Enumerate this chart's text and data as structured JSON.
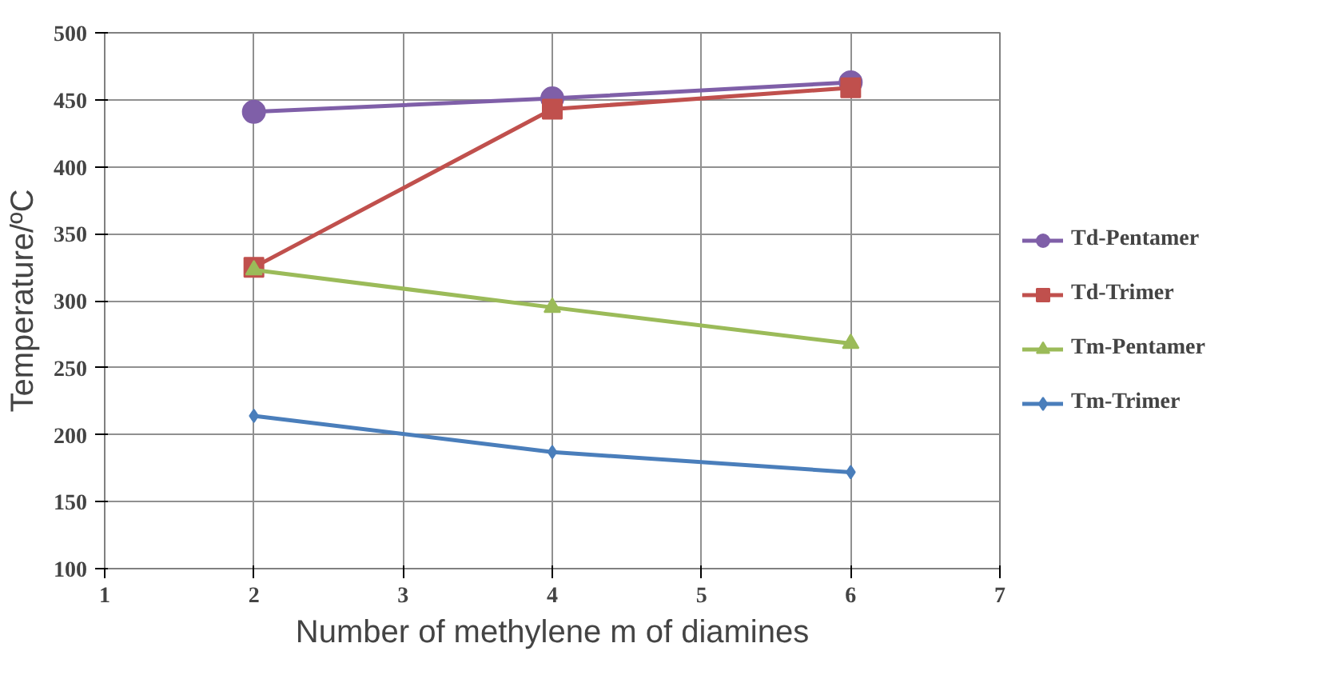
{
  "chart_data": {
    "type": "line",
    "xlabel": "Number of methylene m of diamines",
    "ylabel": "Temperature/ºC",
    "x": [
      2,
      4,
      6
    ],
    "series": [
      {
        "name": "Td-Pentamer",
        "color": "#7f5fa8",
        "marker": "circle",
        "values": [
          441,
          451,
          463
        ]
      },
      {
        "name": "Td-Trimer",
        "color": "#c0504d",
        "marker": "square",
        "values": [
          325,
          443,
          459
        ]
      },
      {
        "name": "Tm-Pentamer",
        "color": "#9bbb59",
        "marker": "triangle",
        "values": [
          323,
          295,
          268
        ]
      },
      {
        "name": "Tm-Trimer",
        "color": "#4a7ebb",
        "marker": "diamond",
        "values": [
          214,
          187,
          172
        ]
      }
    ],
    "xlim": [
      1,
      7
    ],
    "xticks": [
      1,
      2,
      3,
      4,
      5,
      6,
      7
    ],
    "ylim": [
      100,
      500
    ],
    "yticks": [
      100,
      150,
      200,
      250,
      300,
      350,
      400,
      450,
      500
    ],
    "grid": true,
    "legend": "right",
    "line_style": "solid"
  }
}
